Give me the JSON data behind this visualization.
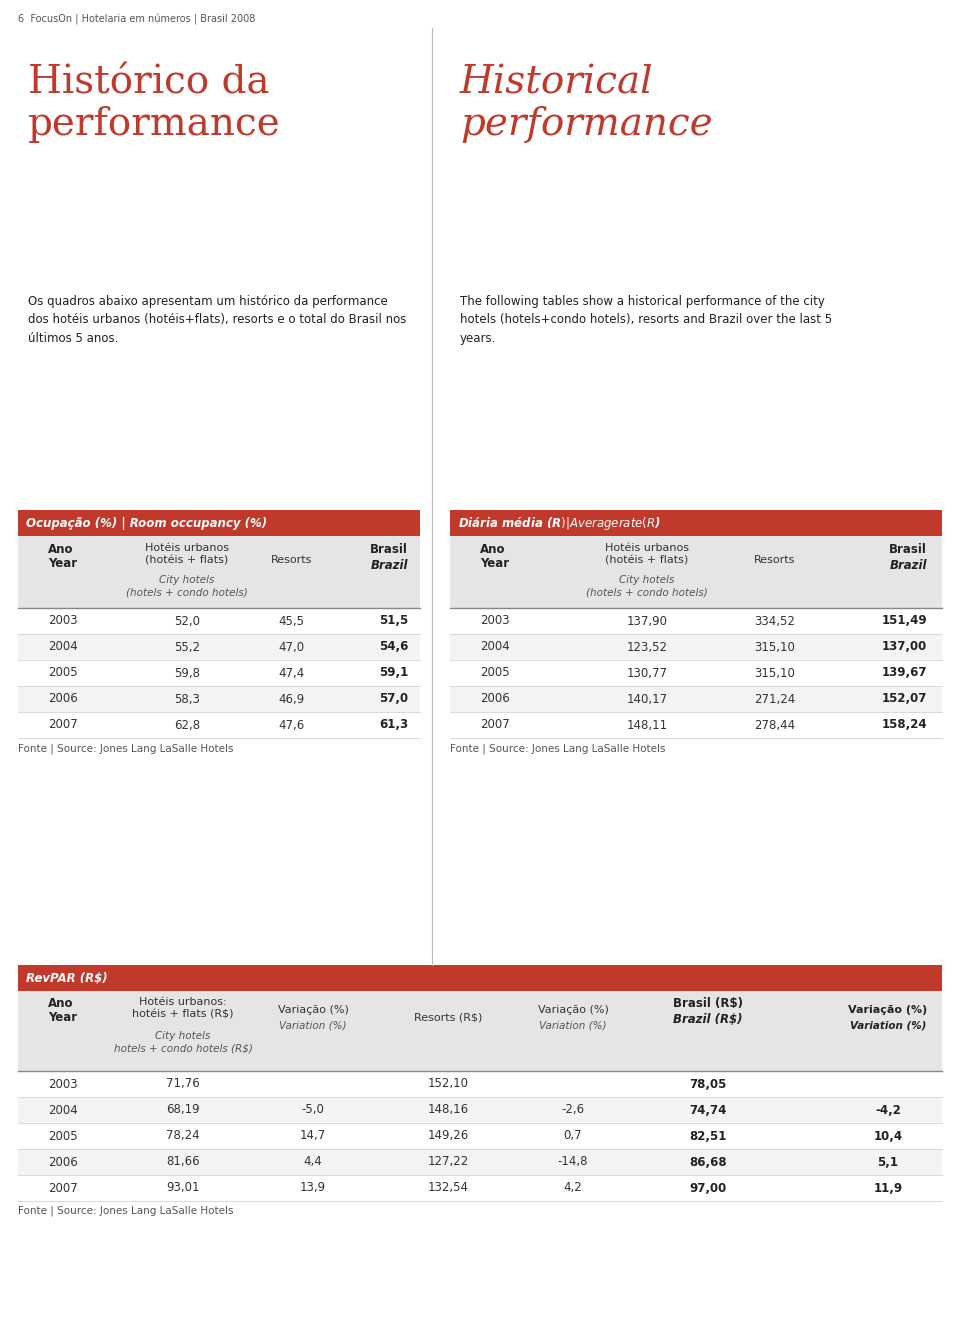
{
  "page_header": "6  FocusOn | Hotelaria em números | Brasil 2008",
  "title_pt": "Histórico da\nperformance",
  "title_en": "Historical\nperformance",
  "desc_pt": "Os quadros abaixo apresentam um histórico da performance\ndos hotéis urbanos (hotéis+flats), resorts e o total do Brasil nos\núltimos 5 anos.",
  "desc_en": "The following tables show a historical performance of the city\nhotels (hotels+condo hotels), resorts and Brazil over the last 5\nyears.",
  "red_color": "#C0392B",
  "light_gray": "#E5E5E5",
  "white": "#FFFFFF",
  "table1_title": "Ocupação (%) | Room occupancy (%)",
  "table2_title": "Diária média (R$) | Average rate (R$)",
  "table3_title": "RevPAR (R$)",
  "source_text": "Fonte | Source: Jones Lang LaSalle Hotels",
  "occ_years": [
    "2003",
    "2004",
    "2005",
    "2006",
    "2007"
  ],
  "occ_urban": [
    "52,0",
    "55,2",
    "59,8",
    "58,3",
    "62,8"
  ],
  "occ_resorts": [
    "45,5",
    "47,0",
    "47,4",
    "46,9",
    "47,6"
  ],
  "occ_brasil": [
    "51,5",
    "54,6",
    "59,1",
    "57,0",
    "61,3"
  ],
  "rate_years": [
    "2003",
    "2004",
    "2005",
    "2006",
    "2007"
  ],
  "rate_urban": [
    "137,90",
    "123,52",
    "130,77",
    "140,17",
    "148,11"
  ],
  "rate_resorts": [
    "334,52",
    "315,10",
    "315,10",
    "271,24",
    "278,44"
  ],
  "rate_brasil": [
    "151,49",
    "137,00",
    "139,67",
    "152,07",
    "158,24"
  ],
  "revpar_years": [
    "2003",
    "2004",
    "2005",
    "2006",
    "2007"
  ],
  "revpar_urban": [
    "71,76",
    "68,19",
    "78,24",
    "81,66",
    "93,01"
  ],
  "revpar_urban_var": [
    "",
    "-5,0",
    "14,7",
    "4,4",
    "13,9"
  ],
  "revpar_resorts": [
    "152,10",
    "148,16",
    "149,26",
    "127,22",
    "132,54"
  ],
  "revpar_resorts_var": [
    "",
    "-2,6",
    "0,7",
    "-14,8",
    "4,2"
  ],
  "revpar_brasil": [
    "78,05",
    "74,74",
    "82,51",
    "86,68",
    "97,00"
  ],
  "revpar_brasil_var": [
    "",
    "-4,2",
    "10,4",
    "5,1",
    "11,9"
  ]
}
